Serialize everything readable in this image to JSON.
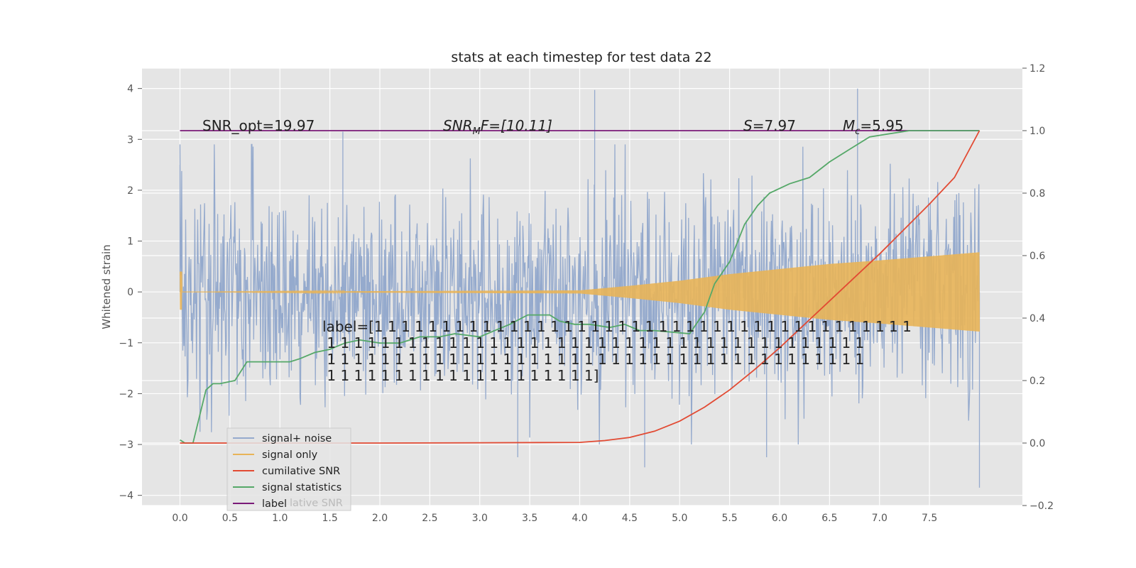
{
  "chart_data": {
    "type": "line",
    "title": "stats at each timestep for test data 22",
    "ylabel": "Whitened strain",
    "xlabel": "",
    "xlim": [
      -0.38,
      8.43
    ],
    "ylim": [
      -4.2,
      4.4
    ],
    "ylim_right": [
      -0.2,
      1.2
    ],
    "grid": true,
    "x_ticks": [
      "0.0",
      "0.5",
      "1.0",
      "1.5",
      "2.0",
      "2.5",
      "3.0",
      "3.5",
      "4.0",
      "4.5",
      "5.0",
      "5.5",
      "6.0",
      "6.5",
      "7.0",
      "7.5"
    ],
    "y_ticks": [
      "4",
      "3",
      "2",
      "1",
      "0",
      "−1",
      "−2",
      "−3",
      "−4"
    ],
    "y_ticks_right": [
      "1.2",
      "1.0",
      "0.8",
      "0.6",
      "0.4",
      "0.2",
      "0.0",
      "−0.2"
    ],
    "legend_placement": "lower-left",
    "legend_ghost_text": "lative SNR",
    "annotations": {
      "snr_opt": "SNR_opt=19.97",
      "snr_mf_sym": "SNR",
      "snr_mf_sub": "M",
      "snr_mf_rest": "F=[10.11]",
      "s_sym": "S",
      "s_rest": "=7.97",
      "mc_sym": "M",
      "mc_sub": "c",
      "mc_rest": "=5.95",
      "label_lines": [
        "label=[1 1 1 1 1 1 1 1 1 1 1 1 1 1 1 1 1 1 1 1 1 1 1 1 1 1 1 1 1 1 1 1 1 1 1 1 1 1 1 1",
        " 1 1 1 1 1 1 1 1 1 1 1 1 1 1 1 1 1 1 1 1 1 1 1 1 1 1 1 1 1 1 1 1 1 1 1 1 1 1 1 1",
        " 1 1 1 1 1 1 1 1 1 1 1 1 1 1 1 1 1 1 1 1 1 1 1 1 1 1 1 1 1 1 1 1 1 1 1 1 1 1 1 1",
        " 1 1 1 1 1 1 1 1 1 1 1 1 1 1 1 1 1 1 1 1]"
      ]
    },
    "series": [
      {
        "name": "signal+ noise",
        "axis": "left",
        "color": "#95aacd",
        "kind": "noise",
        "x_range": [
          0.0,
          8.0
        ],
        "y_std_est": 1.0,
        "spikes": [
          [
            1.63,
            3.15
          ],
          [
            4.15,
            3.97
          ],
          [
            6.78,
            4.0
          ],
          [
            3.38,
            -3.25
          ],
          [
            4.65,
            -3.45
          ],
          [
            5.87,
            -3.25
          ],
          [
            8.0,
            -3.85
          ],
          [
            0.0,
            2.5
          ]
        ]
      },
      {
        "name": "signal only",
        "axis": "left",
        "color": "#e8b458",
        "kind": "chirp",
        "x_range": [
          0.0,
          8.0
        ],
        "amplitude_points": [
          [
            0.0,
            0.0
          ],
          [
            4.0,
            0.03
          ],
          [
            4.5,
            0.12
          ],
          [
            5.0,
            0.22
          ],
          [
            5.5,
            0.35
          ],
          [
            6.0,
            0.45
          ],
          [
            6.5,
            0.55
          ],
          [
            7.0,
            0.62
          ],
          [
            7.5,
            0.7
          ],
          [
            8.0,
            0.78
          ]
        ]
      },
      {
        "name": "cumilative SNR",
        "axis": "right",
        "color": "#e24a33",
        "kind": "line",
        "x": [
          0.0,
          1.0,
          2.0,
          3.0,
          4.0,
          4.25,
          4.5,
          4.75,
          5.0,
          5.25,
          5.5,
          5.75,
          6.0,
          6.25,
          6.5,
          6.75,
          7.0,
          7.25,
          7.5,
          7.75,
          8.0
        ],
        "y": [
          0.0,
          0.0,
          0.0,
          0.001,
          0.002,
          0.008,
          0.018,
          0.038,
          0.07,
          0.115,
          0.17,
          0.235,
          0.305,
          0.38,
          0.455,
          0.53,
          0.605,
          0.685,
          0.765,
          0.85,
          1.0
        ]
      },
      {
        "name": "signal statistics",
        "axis": "right",
        "color": "#55a868",
        "kind": "line",
        "x": [
          0.0,
          0.05,
          0.13,
          0.26,
          0.33,
          0.4,
          0.55,
          0.67,
          0.8,
          0.95,
          1.1,
          1.2,
          1.35,
          1.5,
          1.65,
          1.8,
          2.0,
          2.2,
          2.4,
          2.6,
          2.75,
          3.0,
          3.15,
          3.3,
          3.48,
          3.58,
          3.7,
          3.8,
          3.95,
          4.1,
          4.3,
          4.45,
          4.6,
          4.75,
          5.1,
          5.25,
          5.35,
          5.5,
          5.65,
          5.78,
          5.9,
          6.1,
          6.3,
          6.5,
          6.7,
          6.9,
          7.1,
          7.3,
          8.0
        ],
        "y": [
          0.01,
          0.0,
          0.0,
          0.17,
          0.19,
          0.19,
          0.2,
          0.26,
          0.26,
          0.26,
          0.26,
          0.27,
          0.29,
          0.3,
          0.32,
          0.33,
          0.32,
          0.32,
          0.34,
          0.34,
          0.35,
          0.34,
          0.36,
          0.38,
          0.41,
          0.41,
          0.41,
          0.39,
          0.38,
          0.38,
          0.37,
          0.38,
          0.36,
          0.36,
          0.35,
          0.42,
          0.51,
          0.58,
          0.7,
          0.76,
          0.8,
          0.83,
          0.85,
          0.9,
          0.94,
          0.98,
          0.99,
          1.0,
          1.0
        ]
      },
      {
        "name": "label",
        "axis": "right",
        "color": "#7a1a78",
        "kind": "line",
        "x": [
          0.0,
          8.0
        ],
        "y": [
          1.0,
          1.0
        ]
      }
    ]
  }
}
